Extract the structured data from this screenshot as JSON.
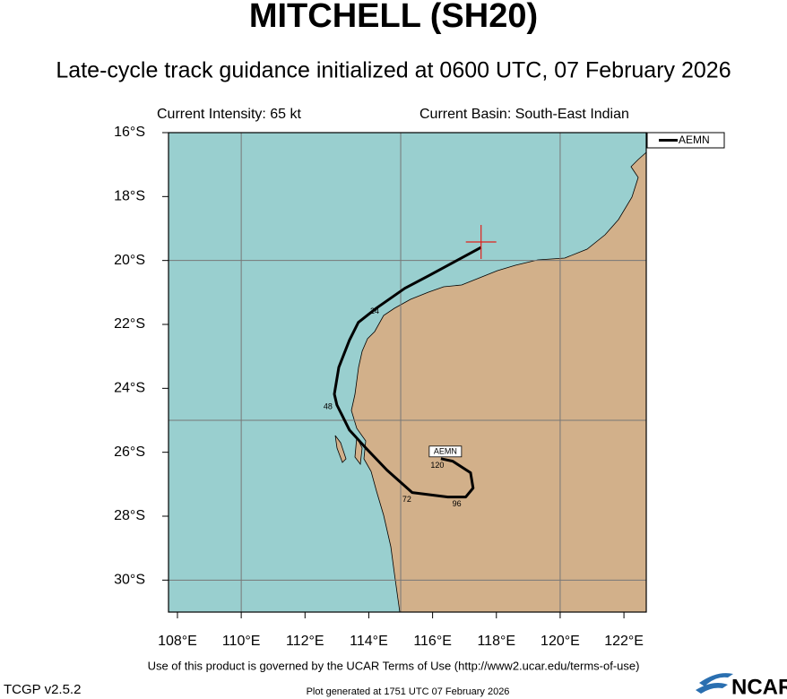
{
  "chart_data": {
    "type": "track-map",
    "title": "MITCHELL (SH20)",
    "subtitle": "Late-cycle track guidance initialized at 0600 UTC, 07 February 2026",
    "intensity": "Current Intensity: 65 kt",
    "basin": "Current Basin: South-East Indian",
    "xlim": [
      107.72,
      122.7
    ],
    "ylim": [
      -31,
      -16
    ],
    "xticks": [
      {
        "value": 108,
        "label": "108°E"
      },
      {
        "value": 110,
        "label": "110°E"
      },
      {
        "value": 112,
        "label": "112°E"
      },
      {
        "value": 114,
        "label": "114°E"
      },
      {
        "value": 116,
        "label": "116°E"
      },
      {
        "value": 118,
        "label": "118°E"
      },
      {
        "value": 120,
        "label": "120°E"
      },
      {
        "value": 122,
        "label": "122°E"
      }
    ],
    "yticks": [
      {
        "value": -16,
        "label": "16°S"
      },
      {
        "value": -18,
        "label": "18°S"
      },
      {
        "value": -20,
        "label": "20°S"
      },
      {
        "value": -22,
        "label": "22°S"
      },
      {
        "value": -24,
        "label": "24°S"
      },
      {
        "value": -26,
        "label": "26°S"
      },
      {
        "value": -28,
        "label": "28°S"
      },
      {
        "value": -30,
        "label": "30°S"
      }
    ],
    "grid_x": [
      110,
      115,
      120
    ],
    "grid_y": [
      -20,
      -25,
      -30
    ],
    "current_position": {
      "x": 117.52,
      "y": -19.42,
      "color": "#e0201b"
    },
    "series": [
      {
        "name": "AEMN",
        "color": "#000000",
        "x": [
          117.52,
          116.76,
          115.87,
          115.13,
          114.24,
          113.67,
          113.39,
          113.06,
          112.92,
          113.0,
          113.39,
          113.9,
          114.57,
          115.36,
          116.48,
          117.04,
          117.27,
          117.19,
          116.63,
          116.26
        ],
        "y": [
          -19.59,
          -20.0,
          -20.48,
          -20.87,
          -21.49,
          -21.94,
          -22.5,
          -23.34,
          -24.18,
          -24.52,
          -25.3,
          -25.86,
          -26.56,
          -27.26,
          -27.4,
          -27.4,
          -27.12,
          -26.64,
          -26.28,
          -26.2
        ]
      }
    ],
    "tau_labels": [
      "24",
      "48",
      "72",
      "96",
      "120"
    ],
    "terms": "Use of this product is governed by the UCAR Terms of Use (http://www2.ucar.edu/terms-of-use)",
    "version": "TCGP v2.5.2",
    "generated": "Plot generated at 1751 UTC   07 February 2026",
    "logo": "NCAR"
  }
}
